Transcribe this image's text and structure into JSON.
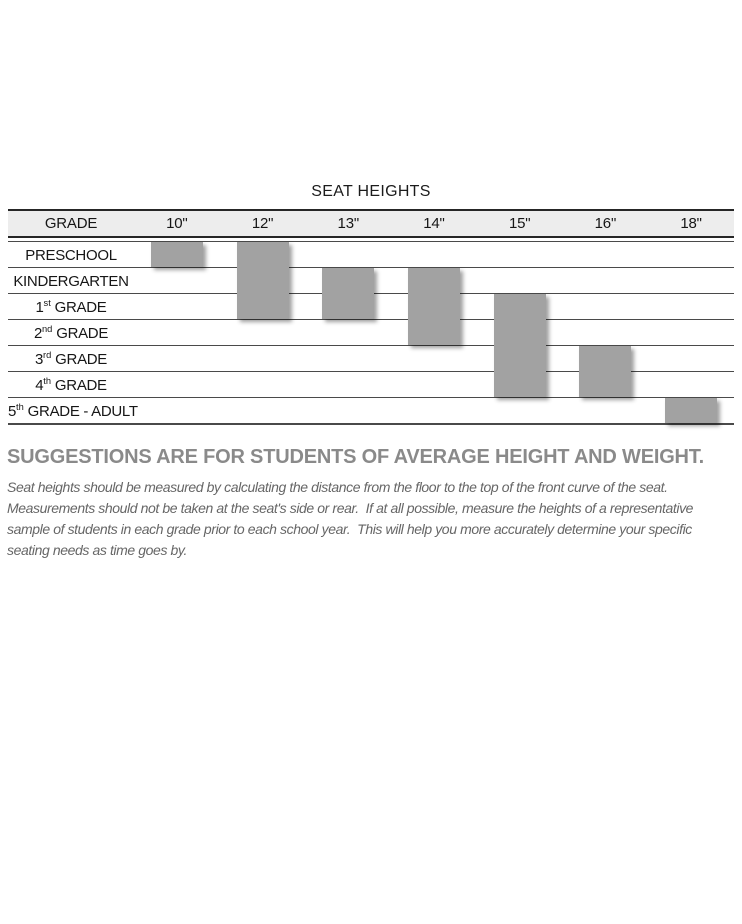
{
  "chart_data": {
    "type": "table",
    "title": "SEAT HEIGHTS",
    "row_header": "GRADE",
    "columns": [
      "10\"",
      "12\"",
      "13\"",
      "14\"",
      "15\"",
      "16\"",
      "18\""
    ],
    "rows": [
      "PRESCHOOL",
      "KINDERGARTEN",
      "1st GRADE",
      "2nd GRADE",
      "3rd GRADE",
      "4th GRADE",
      "5th GRADE - ADULT"
    ],
    "row_labels": [
      {
        "pre": "PRESCHOOL",
        "sup": "",
        "post": ""
      },
      {
        "pre": "KINDERGARTEN",
        "sup": "",
        "post": ""
      },
      {
        "pre": "1",
        "sup": "st",
        "post": " GRADE"
      },
      {
        "pre": "2",
        "sup": "nd",
        "post": " GRADE"
      },
      {
        "pre": "3",
        "sup": "rd",
        "post": " GRADE"
      },
      {
        "pre": "4",
        "sup": "th",
        "post": " GRADE"
      },
      {
        "pre": "5",
        "sup": "th",
        "post": " GRADE - ADULT"
      }
    ],
    "recommended": [
      {
        "seat_height": "10\"",
        "grades_from": "PRESCHOOL",
        "grades_to": "PRESCHOOL"
      },
      {
        "seat_height": "12\"",
        "grades_from": "PRESCHOOL",
        "grades_to": "1st GRADE"
      },
      {
        "seat_height": "13\"",
        "grades_from": "KINDERGARTEN",
        "grades_to": "1st GRADE"
      },
      {
        "seat_height": "14\"",
        "grades_from": "KINDERGARTEN",
        "grades_to": "2nd GRADE"
      },
      {
        "seat_height": "15\"",
        "grades_from": "1st GRADE",
        "grades_to": "4th GRADE"
      },
      {
        "seat_height": "16\"",
        "grades_from": "3rd GRADE",
        "grades_to": "4th GRADE"
      },
      {
        "seat_height": "18\"",
        "grades_from": "5th GRADE - ADULT",
        "grades_to": "5th GRADE - ADULT"
      }
    ],
    "bar_color": "#a2a2a2",
    "header_bg": "#ededed",
    "legend_position": "none",
    "grid": "horizontal-row-lines"
  },
  "footer": {
    "heading": "SUGGESTIONS ARE FOR STUDENTS OF AVERAGE HEIGHT AND WEIGHT.",
    "lines": [
      "Seat heights should be measured by calculating the distance from the floor to the top of the front curve of the seat.",
      "Measurements should not be taken at the seat's side or rear.  If at all possible, measure the heights of a representative",
      "sample of students in each grade prior to each school year.  This will help you more accurately determine your specific",
      "seating needs as time goes by."
    ]
  }
}
